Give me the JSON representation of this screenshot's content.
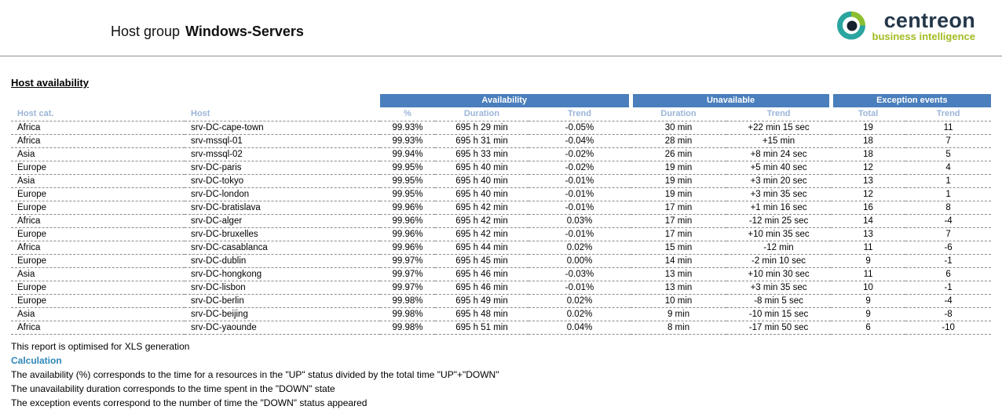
{
  "colors": {
    "table_header_blue": "#4A7EBC",
    "column_header_text": "#9BB5D8",
    "calculation_heading": "#2E86B8",
    "logo_navy": "#24374A",
    "logo_green": "#A3BC22",
    "logo_teal": "#2AA5A0"
  },
  "header": {
    "title_prefix": "Host group",
    "hostgroup_name": "Windows-Servers",
    "logo": {
      "wordmark": "centreon",
      "tagline": "business intelligence"
    }
  },
  "section": {
    "title": "Host availability"
  },
  "table": {
    "groups": [
      {
        "label": "Availability"
      },
      {
        "label": "Unavailable"
      },
      {
        "label": "Exception events"
      }
    ],
    "columns": [
      "Host cat.",
      "Host",
      "%",
      "Duration",
      "Trend",
      "Duration",
      "Trend",
      "Total",
      "Trend"
    ],
    "column_keys": [
      "host-cat",
      "host",
      "availability-pct",
      "availability-duration",
      "availability-trend",
      "unavailable-duration",
      "unavailable-trend",
      "exception-total",
      "exception-trend"
    ],
    "rows": [
      [
        "Africa",
        "srv-DC-cape-town",
        "99.93%",
        "695 h 29 min",
        "-0.05%",
        "30 min",
        "+22 min 15 sec",
        "19",
        "11"
      ],
      [
        "Africa",
        "srv-mssql-01",
        "99.93%",
        "695 h 31 min",
        "-0.04%",
        "28 min",
        "+15 min",
        "18",
        "7"
      ],
      [
        "Asia",
        "srv-mssql-02",
        "99.94%",
        "695 h 33 min",
        "-0.02%",
        "26 min",
        "+8 min 24 sec",
        "18",
        "5"
      ],
      [
        "Europe",
        "srv-DC-paris",
        "99.95%",
        "695 h 40 min",
        "-0.02%",
        "19 min",
        "+5 min 40 sec",
        "12",
        "4"
      ],
      [
        "Asia",
        "srv-DC-tokyo",
        "99.95%",
        "695 h 40 min",
        "-0.01%",
        "19 min",
        "+3 min 20 sec",
        "13",
        "1"
      ],
      [
        "Europe",
        "srv-DC-london",
        "99.95%",
        "695 h 40 min",
        "-0.01%",
        "19 min",
        "+3 min 35 sec",
        "12",
        "1"
      ],
      [
        "Europe",
        "srv-DC-bratislava",
        "99.96%",
        "695 h 42 min",
        "-0.01%",
        "17 min",
        "+1 min 16 sec",
        "16",
        "8"
      ],
      [
        "Africa",
        "srv-DC-alger",
        "99.96%",
        "695 h 42 min",
        "0.03%",
        "17 min",
        "-12 min 25 sec",
        "14",
        "-4"
      ],
      [
        "Europe",
        "srv-DC-bruxelles",
        "99.96%",
        "695 h 42 min",
        "-0.01%",
        "17 min",
        "+10 min 35 sec",
        "13",
        "7"
      ],
      [
        "Africa",
        "srv-DC-casablanca",
        "99.96%",
        "695 h 44 min",
        "0.02%",
        "15 min",
        "-12 min",
        "11",
        "-6"
      ],
      [
        "Europe",
        "srv-DC-dublin",
        "99.97%",
        "695 h 45 min",
        "0.00%",
        "14 min",
        "-2 min 10 sec",
        "9",
        "-1"
      ],
      [
        "Asia",
        "srv-DC-hongkong",
        "99.97%",
        "695 h 46 min",
        "-0.03%",
        "13 min",
        "+10 min 30 sec",
        "11",
        "6"
      ],
      [
        "Europe",
        "srv-DC-lisbon",
        "99.97%",
        "695 h 46 min",
        "-0.01%",
        "13 min",
        "+3 min 35 sec",
        "10",
        "-1"
      ],
      [
        "Europe",
        "srv-DC-berlin",
        "99.98%",
        "695 h 49 min",
        "0.02%",
        "10 min",
        "-8 min 5 sec",
        "9",
        "-4"
      ],
      [
        "Asia",
        "srv-DC-beijing",
        "99.98%",
        "695 h 48 min",
        "0.02%",
        "9 min",
        "-10 min 15 sec",
        "9",
        "-8"
      ],
      [
        "Africa",
        "srv-DC-yaounde",
        "99.98%",
        "695 h 51 min",
        "0.04%",
        "8 min",
        "-17 min 50 sec",
        "6",
        "-10"
      ]
    ]
  },
  "footer": {
    "note": "This report is optimised for XLS generation",
    "calculation_title": "Calculation",
    "lines": [
      "The availability (%) corresponds to the time for a resources in the \"UP\" status divided by the total time \"UP\"+\"DOWN\"",
      "The unavailability duration corresponds to the time spent in the \"DOWN\" state",
      "The exception events correspond to the number of time the \"DOWN\" status appeared"
    ]
  }
}
